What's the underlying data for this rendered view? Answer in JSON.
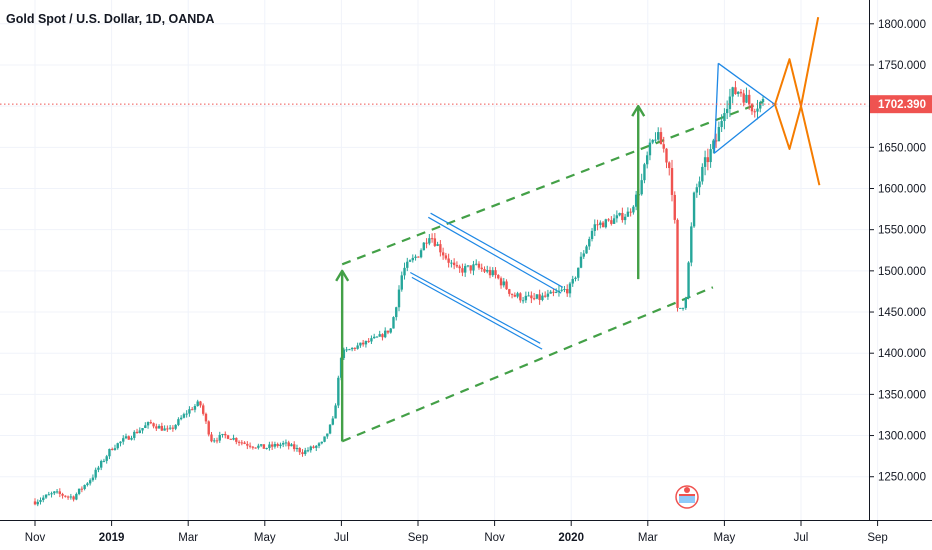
{
  "chart_data": {
    "type": "candlestick",
    "title": "Gold Spot / U.S. Dollar, 1D, OANDA",
    "y_ticks": [
      "1250.000",
      "1300.000",
      "1350.000",
      "1400.000",
      "1450.000",
      "1500.000",
      "1550.000",
      "1600.000",
      "1650.000",
      "1700.000",
      "1750.000",
      "1800.000"
    ],
    "x_ticks": [
      {
        "label": "Nov",
        "bold": false
      },
      {
        "label": "2019",
        "bold": true
      },
      {
        "label": "Mar",
        "bold": false
      },
      {
        "label": "May",
        "bold": false
      },
      {
        "label": "Jul",
        "bold": false
      },
      {
        "label": "Sep",
        "bold": false
      },
      {
        "label": "Nov",
        "bold": false
      },
      {
        "label": "2020",
        "bold": true
      },
      {
        "label": "Mar",
        "bold": false
      },
      {
        "label": "May",
        "bold": false
      },
      {
        "label": "Jul",
        "bold": false
      },
      {
        "label": "Sep",
        "bold": false
      }
    ],
    "ylim": [
      1200,
      1830
    ],
    "current_price": {
      "value": 1702.39,
      "label": "1702.390"
    },
    "colors": {
      "up": "#26a69a",
      "down": "#ef5350",
      "current": "#ef5350",
      "green": "#43a047",
      "blue": "#1e88e5",
      "orange": "#f57c00",
      "grid": "#f0f3fa",
      "axis": "#131722"
    },
    "anchors": [
      {
        "x": 0.0,
        "y": 1220
      },
      {
        "x": 0.5,
        "y": 1230
      },
      {
        "x": 1.0,
        "y": 1225
      },
      {
        "x": 1.5,
        "y": 1250
      },
      {
        "x": 2.0,
        "y": 1285
      },
      {
        "x": 2.5,
        "y": 1300
      },
      {
        "x": 3.0,
        "y": 1315
      },
      {
        "x": 3.5,
        "y": 1305
      },
      {
        "x": 4.0,
        "y": 1330
      },
      {
        "x": 4.3,
        "y": 1340
      },
      {
        "x": 4.6,
        "y": 1295
      },
      {
        "x": 5.0,
        "y": 1300
      },
      {
        "x": 5.5,
        "y": 1290
      },
      {
        "x": 6.0,
        "y": 1285
      },
      {
        "x": 6.5,
        "y": 1290
      },
      {
        "x": 7.0,
        "y": 1280
      },
      {
        "x": 7.5,
        "y": 1290
      },
      {
        "x": 7.8,
        "y": 1320
      },
      {
        "x": 8.0,
        "y": 1400
      },
      {
        "x": 8.5,
        "y": 1410
      },
      {
        "x": 9.0,
        "y": 1420
      },
      {
        "x": 9.3,
        "y": 1430
      },
      {
        "x": 9.6,
        "y": 1500
      },
      {
        "x": 10.0,
        "y": 1520
      },
      {
        "x": 10.3,
        "y": 1545
      },
      {
        "x": 10.6,
        "y": 1525
      },
      {
        "x": 11.0,
        "y": 1500
      },
      {
        "x": 11.5,
        "y": 1505
      },
      {
        "x": 12.0,
        "y": 1495
      },
      {
        "x": 12.5,
        "y": 1470
      },
      {
        "x": 13.0,
        "y": 1465
      },
      {
        "x": 13.5,
        "y": 1470
      },
      {
        "x": 14.0,
        "y": 1480
      },
      {
        "x": 14.3,
        "y": 1520
      },
      {
        "x": 14.6,
        "y": 1555
      },
      {
        "x": 15.0,
        "y": 1560
      },
      {
        "x": 15.5,
        "y": 1570
      },
      {
        "x": 15.8,
        "y": 1600
      },
      {
        "x": 16.0,
        "y": 1640
      },
      {
        "x": 16.2,
        "y": 1665
      },
      {
        "x": 16.4,
        "y": 1650
      },
      {
        "x": 16.6,
        "y": 1620
      },
      {
        "x": 16.8,
        "y": 1500
      },
      {
        "x": 17.0,
        "y": 1470
      },
      {
        "x": 17.2,
        "y": 1590
      },
      {
        "x": 17.5,
        "y": 1630
      },
      {
        "x": 17.8,
        "y": 1660
      },
      {
        "x": 18.0,
        "y": 1700
      },
      {
        "x": 18.2,
        "y": 1715
      },
      {
        "x": 18.4,
        "y": 1720
      },
      {
        "x": 18.7,
        "y": 1700
      },
      {
        "x": 19.0,
        "y": 1705
      }
    ],
    "annotations": {
      "green_channel_upper": [
        [
          8.02,
          1508
        ],
        [
          19.0,
          1705
        ]
      ],
      "green_channel_lower": [
        [
          8.02,
          1293
        ],
        [
          17.7,
          1480
        ]
      ],
      "green_arrow_1": [
        [
          8.02,
          1293
        ],
        [
          8.02,
          1500
        ]
      ],
      "green_arrow_2": [
        [
          15.75,
          1490
        ],
        [
          15.75,
          1700
        ]
      ],
      "blue_flag_upper": [
        [
          10.33,
          1570
        ],
        [
          13.78,
          1480
        ]
      ],
      "blue_flag_lower": [
        [
          9.8,
          1498
        ],
        [
          13.19,
          1412
        ]
      ],
      "blue_flag_upper_2": [
        [
          10.27,
          1565
        ],
        [
          13.74,
          1473
        ]
      ],
      "blue_flag_lower_2": [
        [
          9.84,
          1492
        ],
        [
          13.24,
          1405
        ]
      ],
      "blue_triangle": [
        [
          17.84,
          1752
        ],
        [
          19.32,
          1702
        ],
        [
          17.74,
          1643
        ]
      ],
      "orange_up_zigzag": [
        [
          19.32,
          1702
        ],
        [
          19.7,
          1757
        ],
        [
          20.0,
          1700
        ],
        [
          20.45,
          1808
        ]
      ],
      "orange_down_zigzag": [
        [
          19.32,
          1702
        ],
        [
          19.7,
          1648
        ],
        [
          20.0,
          1700
        ],
        [
          20.48,
          1604
        ]
      ]
    }
  }
}
